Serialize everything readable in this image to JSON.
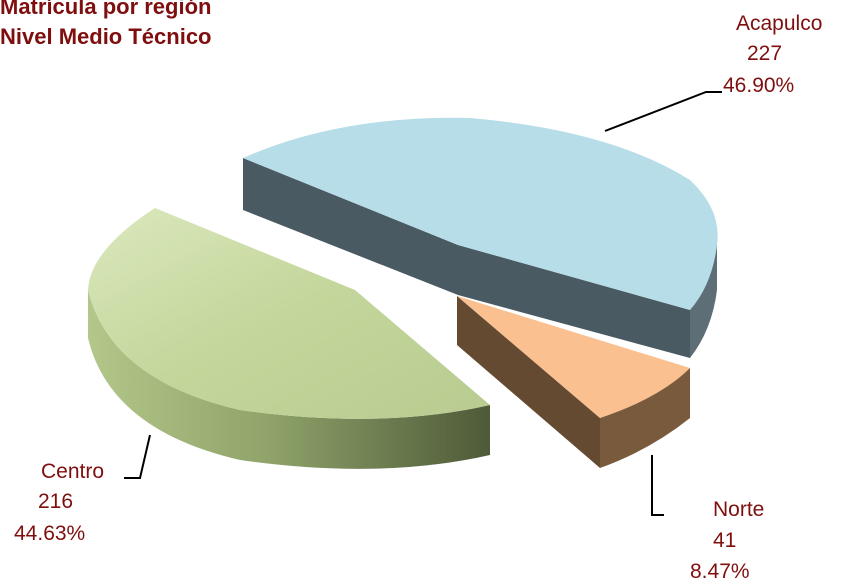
{
  "chart_data": {
    "type": "pie",
    "title": [
      "Matrícula por región",
      "Nivel Medio Técnico"
    ],
    "categories": [
      "Acapulco",
      "Norte",
      "Centro"
    ],
    "values": [
      227,
      41,
      216
    ],
    "percent_labels": [
      "46.90%",
      "8.47%",
      "44.63%"
    ],
    "colors": {
      "Acapulco": "#b7dde8",
      "Norte": "#fac090",
      "Centro": "#c3d69b",
      "text": "#7f0f0f"
    }
  }
}
